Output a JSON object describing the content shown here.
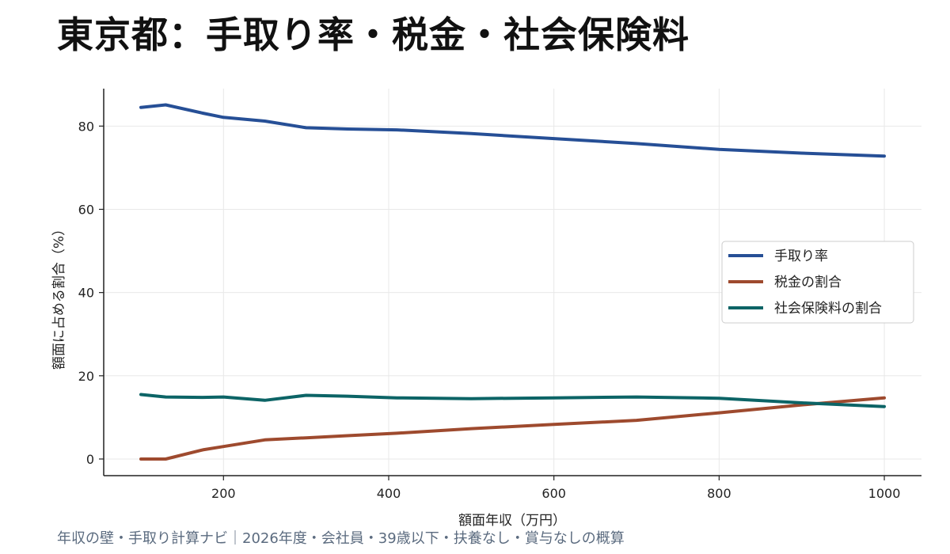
{
  "title": "東京都：手取り率・税金・社会保険料",
  "footer": "年収の壁・手取り計算ナビ｜2026年度・会社員・39歳以下・扶養なし・賞与なしの概算",
  "chart_data": {
    "type": "line",
    "xlabel": "額面年収（万円）",
    "ylabel": "額面に占める割合（%）",
    "xlim": [
      55,
      1045
    ],
    "ylim": [
      -4,
      89
    ],
    "xticks": [
      200,
      400,
      600,
      800,
      1000
    ],
    "yticks": [
      0,
      20,
      40,
      60,
      80
    ],
    "grid": true,
    "legend_position": "center-right",
    "x": [
      100,
      130,
      175,
      200,
      250,
      300,
      350,
      410,
      500,
      600,
      700,
      800,
      900,
      1000
    ],
    "series": [
      {
        "name": "手取り率",
        "color": "#264f96",
        "values": [
          84.5,
          85.1,
          83.1,
          82.1,
          81.2,
          79.6,
          79.3,
          79.1,
          78.2,
          77.0,
          75.8,
          74.4,
          73.5,
          72.8
        ]
      },
      {
        "name": "税金の割合",
        "color": "#9e4a2e",
        "values": [
          0.0,
          0.0,
          2.2,
          3.0,
          4.6,
          5.1,
          5.6,
          6.2,
          7.3,
          8.3,
          9.3,
          11.1,
          13.0,
          14.7
        ]
      },
      {
        "name": "社会保険料の割合",
        "color": "#0c6466",
        "values": [
          15.5,
          14.9,
          14.8,
          14.9,
          14.1,
          15.3,
          15.1,
          14.7,
          14.5,
          14.7,
          14.9,
          14.6,
          13.5,
          12.6
        ]
      }
    ]
  }
}
